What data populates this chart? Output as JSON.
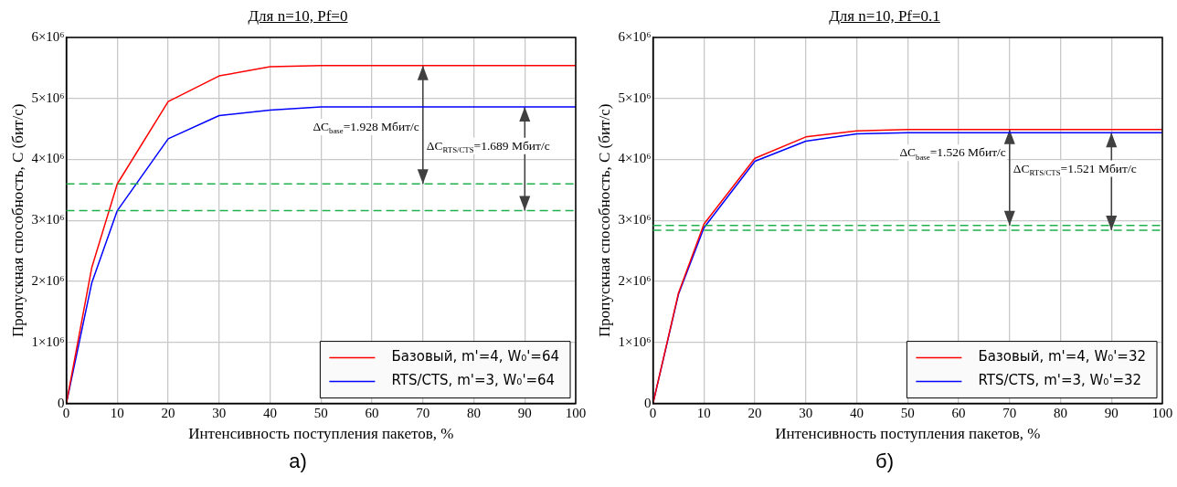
{
  "chart_data": [
    {
      "type": "line",
      "title": "Для n=10, Pf=0",
      "xlabel": "Интенсивность поступления пакетов, %",
      "ylabel": "Пропускная способность, С (бит/с)",
      "xlim": [
        0,
        100
      ],
      "xticks": [
        0,
        10,
        20,
        30,
        40,
        50,
        60,
        70,
        80,
        90,
        100
      ],
      "ylim": [
        0,
        6000000
      ],
      "yticks": [
        0,
        {
          "value": 1000000,
          "label": "1×10⁶"
        },
        {
          "value": 2000000,
          "label": "2×10⁶"
        },
        {
          "value": 3000000,
          "label": "3×10⁶"
        },
        {
          "value": 4000000,
          "label": "4×10⁶"
        },
        {
          "value": 5000000,
          "label": "5×10⁶"
        },
        {
          "value": 6000000,
          "label": "6×10⁶"
        }
      ],
      "grid": true,
      "legend": "bottom right",
      "x": [
        0,
        5,
        10,
        20,
        30,
        40,
        50,
        60,
        70,
        80,
        90,
        100
      ],
      "series": [
        {
          "name": "Базовый, m'=4, W₀'=64",
          "color": "#ff0000",
          "values": [
            0,
            2230000,
            3600000,
            4950000,
            5370000,
            5520000,
            5540000,
            5540000,
            5540000,
            5540000,
            5540000,
            5540000
          ]
        },
        {
          "name": "RTS/CTS, m'=3, W₀'=64",
          "color": "#0000ff",
          "values": [
            0,
            1980000,
            3160000,
            4340000,
            4720000,
            4810000,
            4860000,
            4860000,
            4860000,
            4860000,
            4860000,
            4860000
          ]
        }
      ],
      "ref_lines": [
        {
          "axis": "y",
          "value": 3600000,
          "color": "#22b04c",
          "line_style": "dashed"
        },
        {
          "axis": "y",
          "value": 3160000,
          "color": "#22b04c",
          "line_style": "dashed"
        }
      ],
      "annotations": [
        "ΔC$_{base}$=1.928 Мбит/с",
        "ΔC$_{RTS/CTS}$=1.689 Мбит/с",
        "а)"
      ]
    },
    {
      "type": "line",
      "title": "Для n=10, Pf=0.1",
      "xlabel": "Интенсивность поступления пакетов, %",
      "ylabel": "Пропускная способность, С (бит/с)",
      "xlim": [
        0,
        100
      ],
      "xticks": [
        0,
        10,
        20,
        30,
        40,
        50,
        60,
        70,
        80,
        90,
        100
      ],
      "ylim": [
        0,
        6000000
      ],
      "yticks": [
        0,
        {
          "value": 1000000,
          "label": "1×10⁶"
        },
        {
          "value": 2000000,
          "label": "2×10⁶"
        },
        {
          "value": 3000000,
          "label": "3×10⁶"
        },
        {
          "value": 4000000,
          "label": "4×10⁶"
        },
        {
          "value": 5000000,
          "label": "5×10⁶"
        },
        {
          "value": 6000000,
          "label": "6×10⁶"
        }
      ],
      "grid": true,
      "legend": "bottom right",
      "x": [
        0,
        5,
        10,
        20,
        30,
        40,
        50,
        60,
        70,
        80,
        90,
        100
      ],
      "series": [
        {
          "name": "Базовый, m'=4, W₀'=32",
          "color": "#ff0000",
          "values": [
            0,
            1810000,
            2940000,
            4020000,
            4370000,
            4470000,
            4490000,
            4490000,
            4490000,
            4490000,
            4490000,
            4490000
          ]
        },
        {
          "name": "RTS/CTS, m'=3, W₀'=32",
          "color": "#0000ff",
          "values": [
            0,
            1790000,
            2880000,
            3970000,
            4300000,
            4420000,
            4440000,
            4440000,
            4440000,
            4440000,
            4440000,
            4440000
          ]
        }
      ],
      "ref_lines": [
        {
          "axis": "y",
          "value": 2920000,
          "color": "#22b04c",
          "line_style": "dashed"
        },
        {
          "axis": "y",
          "value": 2840000,
          "color": "#22b04c",
          "line_style": "dashed"
        }
      ],
      "annotations": [
        "ΔC$_{base}$=1.526 Мбит/с",
        "ΔC$_{RTS/CTS}$=1.521 Мбит/с",
        "б)"
      ]
    }
  ]
}
